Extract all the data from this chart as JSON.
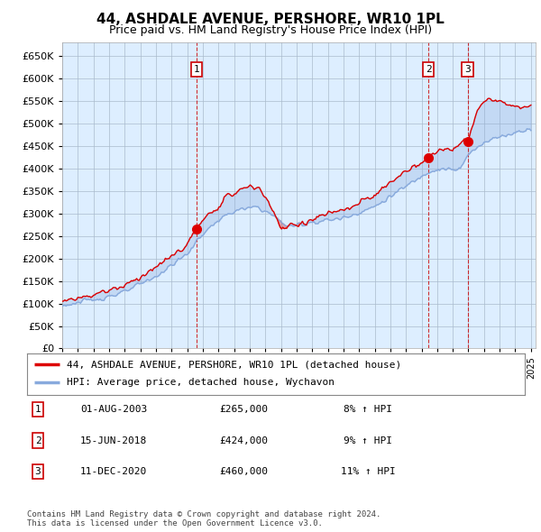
{
  "title": "44, ASHDALE AVENUE, PERSHORE, WR10 1PL",
  "subtitle": "Price paid vs. HM Land Registry's House Price Index (HPI)",
  "ylim": [
    0,
    680000
  ],
  "yticks": [
    0,
    50000,
    100000,
    150000,
    200000,
    250000,
    300000,
    350000,
    400000,
    450000,
    500000,
    550000,
    600000,
    650000
  ],
  "red_color": "#dd0000",
  "blue_color": "#88aadd",
  "fill_color": "#ddeeff",
  "sale_markers": [
    {
      "year": 2003.58,
      "price": 265000,
      "label": "1"
    },
    {
      "year": 2018.45,
      "price": 424000,
      "label": "2"
    },
    {
      "year": 2020.95,
      "price": 460000,
      "label": "3"
    }
  ],
  "legend_entries": [
    {
      "color": "#dd0000",
      "text": "44, ASHDALE AVENUE, PERSHORE, WR10 1PL (detached house)"
    },
    {
      "color": "#88aadd",
      "text": "HPI: Average price, detached house, Wychavon"
    }
  ],
  "table_rows": [
    {
      "num": "1",
      "date": "01-AUG-2003",
      "price": "£265,000",
      "pct": "8% ↑ HPI"
    },
    {
      "num": "2",
      "date": "15-JUN-2018",
      "price": "£424,000",
      "pct": "9% ↑ HPI"
    },
    {
      "num": "3",
      "date": "11-DEC-2020",
      "price": "£460,000",
      "pct": "11% ↑ HPI"
    }
  ],
  "footnote": "Contains HM Land Registry data © Crown copyright and database right 2024.\nThis data is licensed under the Open Government Licence v3.0.",
  "background_color": "#ffffff",
  "chart_bg_color": "#ddeeff",
  "grid_color": "#aabbcc",
  "vline_color": "#cc0000"
}
